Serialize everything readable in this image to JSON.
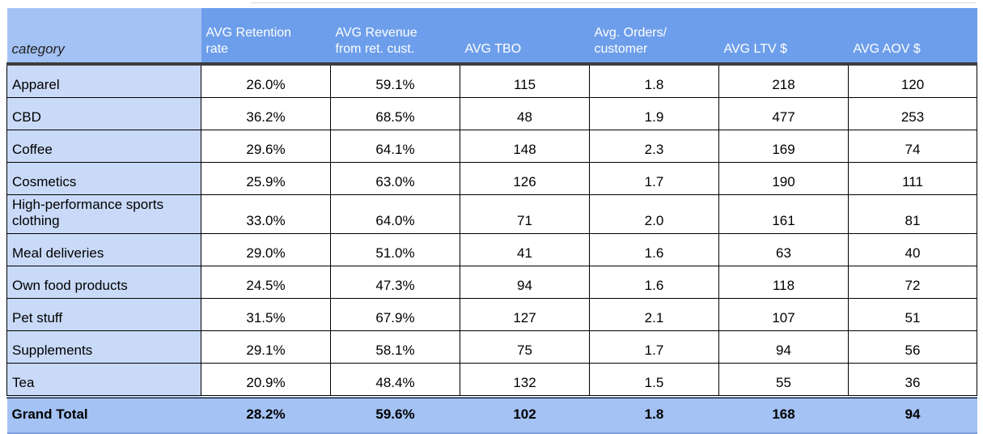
{
  "chart_data": {
    "type": "table",
    "title": "",
    "columns": [
      "category",
      "AVG Retention rate",
      "AVG Revenue from ret. cust.",
      "AVG TBO",
      "Avg. Orders/customer",
      "AVG LTV $",
      "AVG AOV $"
    ],
    "rows": [
      [
        "Apparel",
        "26.0%",
        "59.1%",
        115,
        1.8,
        218,
        120
      ],
      [
        "CBD",
        "36.2%",
        "68.5%",
        48,
        1.9,
        477,
        253
      ],
      [
        "Coffee",
        "29.6%",
        "64.1%",
        148,
        2.3,
        169,
        74
      ],
      [
        "Cosmetics",
        "25.9%",
        "63.0%",
        126,
        1.7,
        190,
        111
      ],
      [
        "High-performance sports clothing",
        "33.0%",
        "64.0%",
        71,
        2.0,
        161,
        81
      ],
      [
        "Meal deliveries",
        "29.0%",
        "51.0%",
        41,
        1.6,
        63,
        40
      ],
      [
        "Own food products",
        "24.5%",
        "47.3%",
        94,
        1.6,
        118,
        72
      ],
      [
        "Pet stuff",
        "31.5%",
        "67.9%",
        127,
        2.1,
        107,
        51
      ],
      [
        "Supplements",
        "29.1%",
        "58.1%",
        75,
        1.7,
        94,
        56
      ],
      [
        "Tea",
        "20.9%",
        "48.4%",
        132,
        1.5,
        55,
        36
      ]
    ],
    "grand_total": [
      "Grand Total",
      "28.2%",
      "59.6%",
      102,
      1.8,
      168,
      94
    ]
  },
  "table": {
    "header": {
      "category_label": "category",
      "metrics": [
        "AVG Retention\nrate",
        "AVG Revenue\nfrom ret. cust.",
        "AVG TBO",
        "Avg. Orders/\ncustomer",
        "AVG LTV $",
        "AVG AOV $"
      ]
    },
    "rows": [
      {
        "category": "Apparel",
        "values": [
          "26.0%",
          "59.1%",
          "115",
          "1.8",
          "218",
          "120"
        ]
      },
      {
        "category": "CBD",
        "values": [
          "36.2%",
          "68.5%",
          "48",
          "1.9",
          "477",
          "253"
        ]
      },
      {
        "category": "Coffee",
        "values": [
          "29.6%",
          "64.1%",
          "148",
          "2.3",
          "169",
          "74"
        ]
      },
      {
        "category": "Cosmetics",
        "values": [
          "25.9%",
          "63.0%",
          "126",
          "1.7",
          "190",
          "111"
        ]
      },
      {
        "category": "High-performance sports clothing",
        "values": [
          "33.0%",
          "64.0%",
          "71",
          "2.0",
          "161",
          "81"
        ]
      },
      {
        "category": "Meal deliveries",
        "values": [
          "29.0%",
          "51.0%",
          "41",
          "1.6",
          "63",
          "40"
        ]
      },
      {
        "category": "Own food products",
        "values": [
          "24.5%",
          "47.3%",
          "94",
          "1.6",
          "118",
          "72"
        ]
      },
      {
        "category": "Pet stuff",
        "values": [
          "31.5%",
          "67.9%",
          "127",
          "2.1",
          "107",
          "51"
        ]
      },
      {
        "category": "Supplements",
        "values": [
          "29.1%",
          "58.1%",
          "75",
          "1.7",
          "94",
          "56"
        ]
      },
      {
        "category": "Tea",
        "values": [
          "20.9%",
          "48.4%",
          "132",
          "1.5",
          "55",
          "36"
        ]
      }
    ],
    "grand_total": {
      "label": "Grand Total",
      "values": [
        "28.2%",
        "59.6%",
        "102",
        "1.8",
        "168",
        "94"
      ]
    }
  },
  "colors": {
    "header_bg": "#6d9eeb",
    "header_text": "#ffffff",
    "category_header_bg": "#a4c2f4",
    "category_header_text": "#1f1f1f",
    "row_label_bg": "#c9daf8",
    "grand_total_bg": "#a4c2f4",
    "grand_total_underline": "#7f9fdb",
    "cell_border": "#000000",
    "header_divider": "#3c3c3c",
    "gridline_remnant": "#d9d9d9"
  }
}
